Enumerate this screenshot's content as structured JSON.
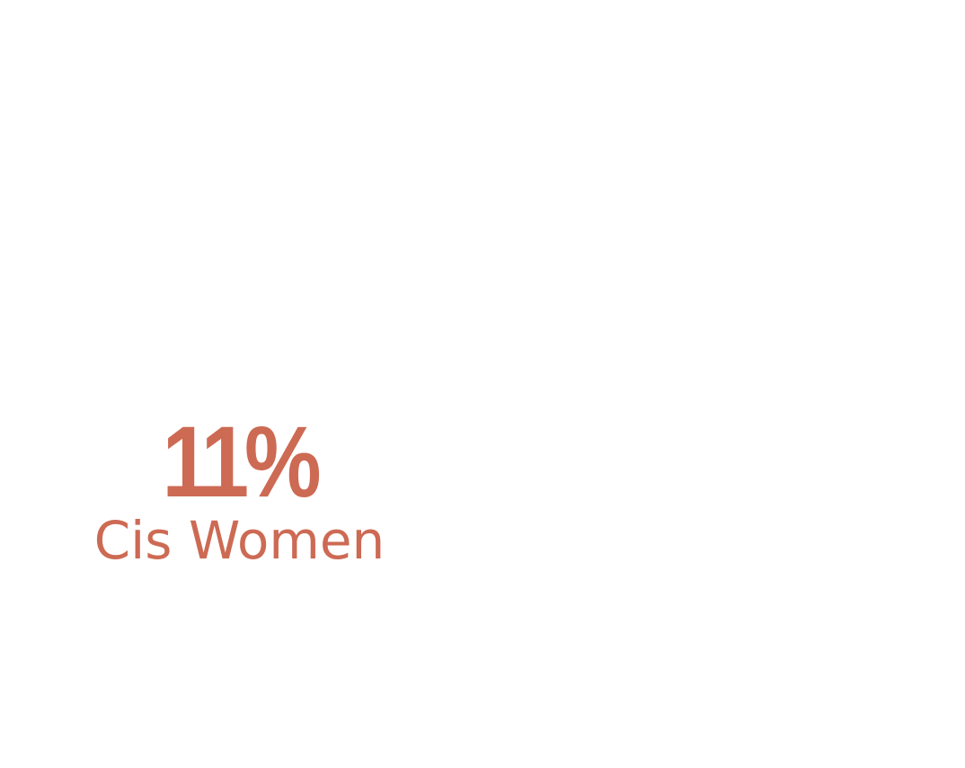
{
  "stat": {
    "value": "11%",
    "label": "Cis Women"
  },
  "colors": {
    "accent": "#cd6a54",
    "background": "#ffffff"
  }
}
